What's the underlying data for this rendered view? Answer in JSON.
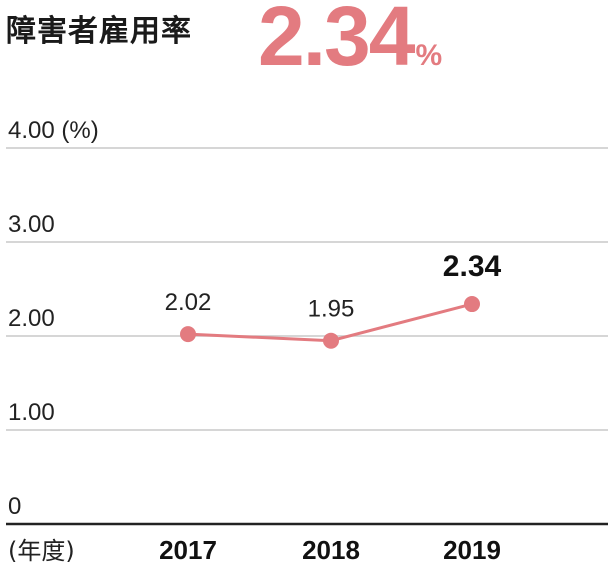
{
  "title": "障害者雇用率",
  "headline": {
    "value": "2.34",
    "unit": "%"
  },
  "colors": {
    "accent": "#e37b80",
    "grid": "#c8c8c8",
    "axis": "#222222",
    "text": "#222222"
  },
  "chart_data": {
    "type": "line",
    "x": [
      "2017",
      "2018",
      "2019"
    ],
    "series": [
      {
        "values": [
          2.02,
          1.95,
          2.34
        ],
        "data_labels": [
          "2.02",
          "1.95",
          "2.34"
        ],
        "emphasized_index": 2
      }
    ],
    "ylim": [
      0,
      4
    ],
    "y_ticks": [
      {
        "value": 0,
        "label": "0"
      },
      {
        "value": 1,
        "label": "1.00"
      },
      {
        "value": 2,
        "label": "2.00"
      },
      {
        "value": 3,
        "label": "3.00"
      },
      {
        "value": 4,
        "label": "4.00 (%)"
      }
    ],
    "xlabel": "(年度)",
    "grid": true
  }
}
